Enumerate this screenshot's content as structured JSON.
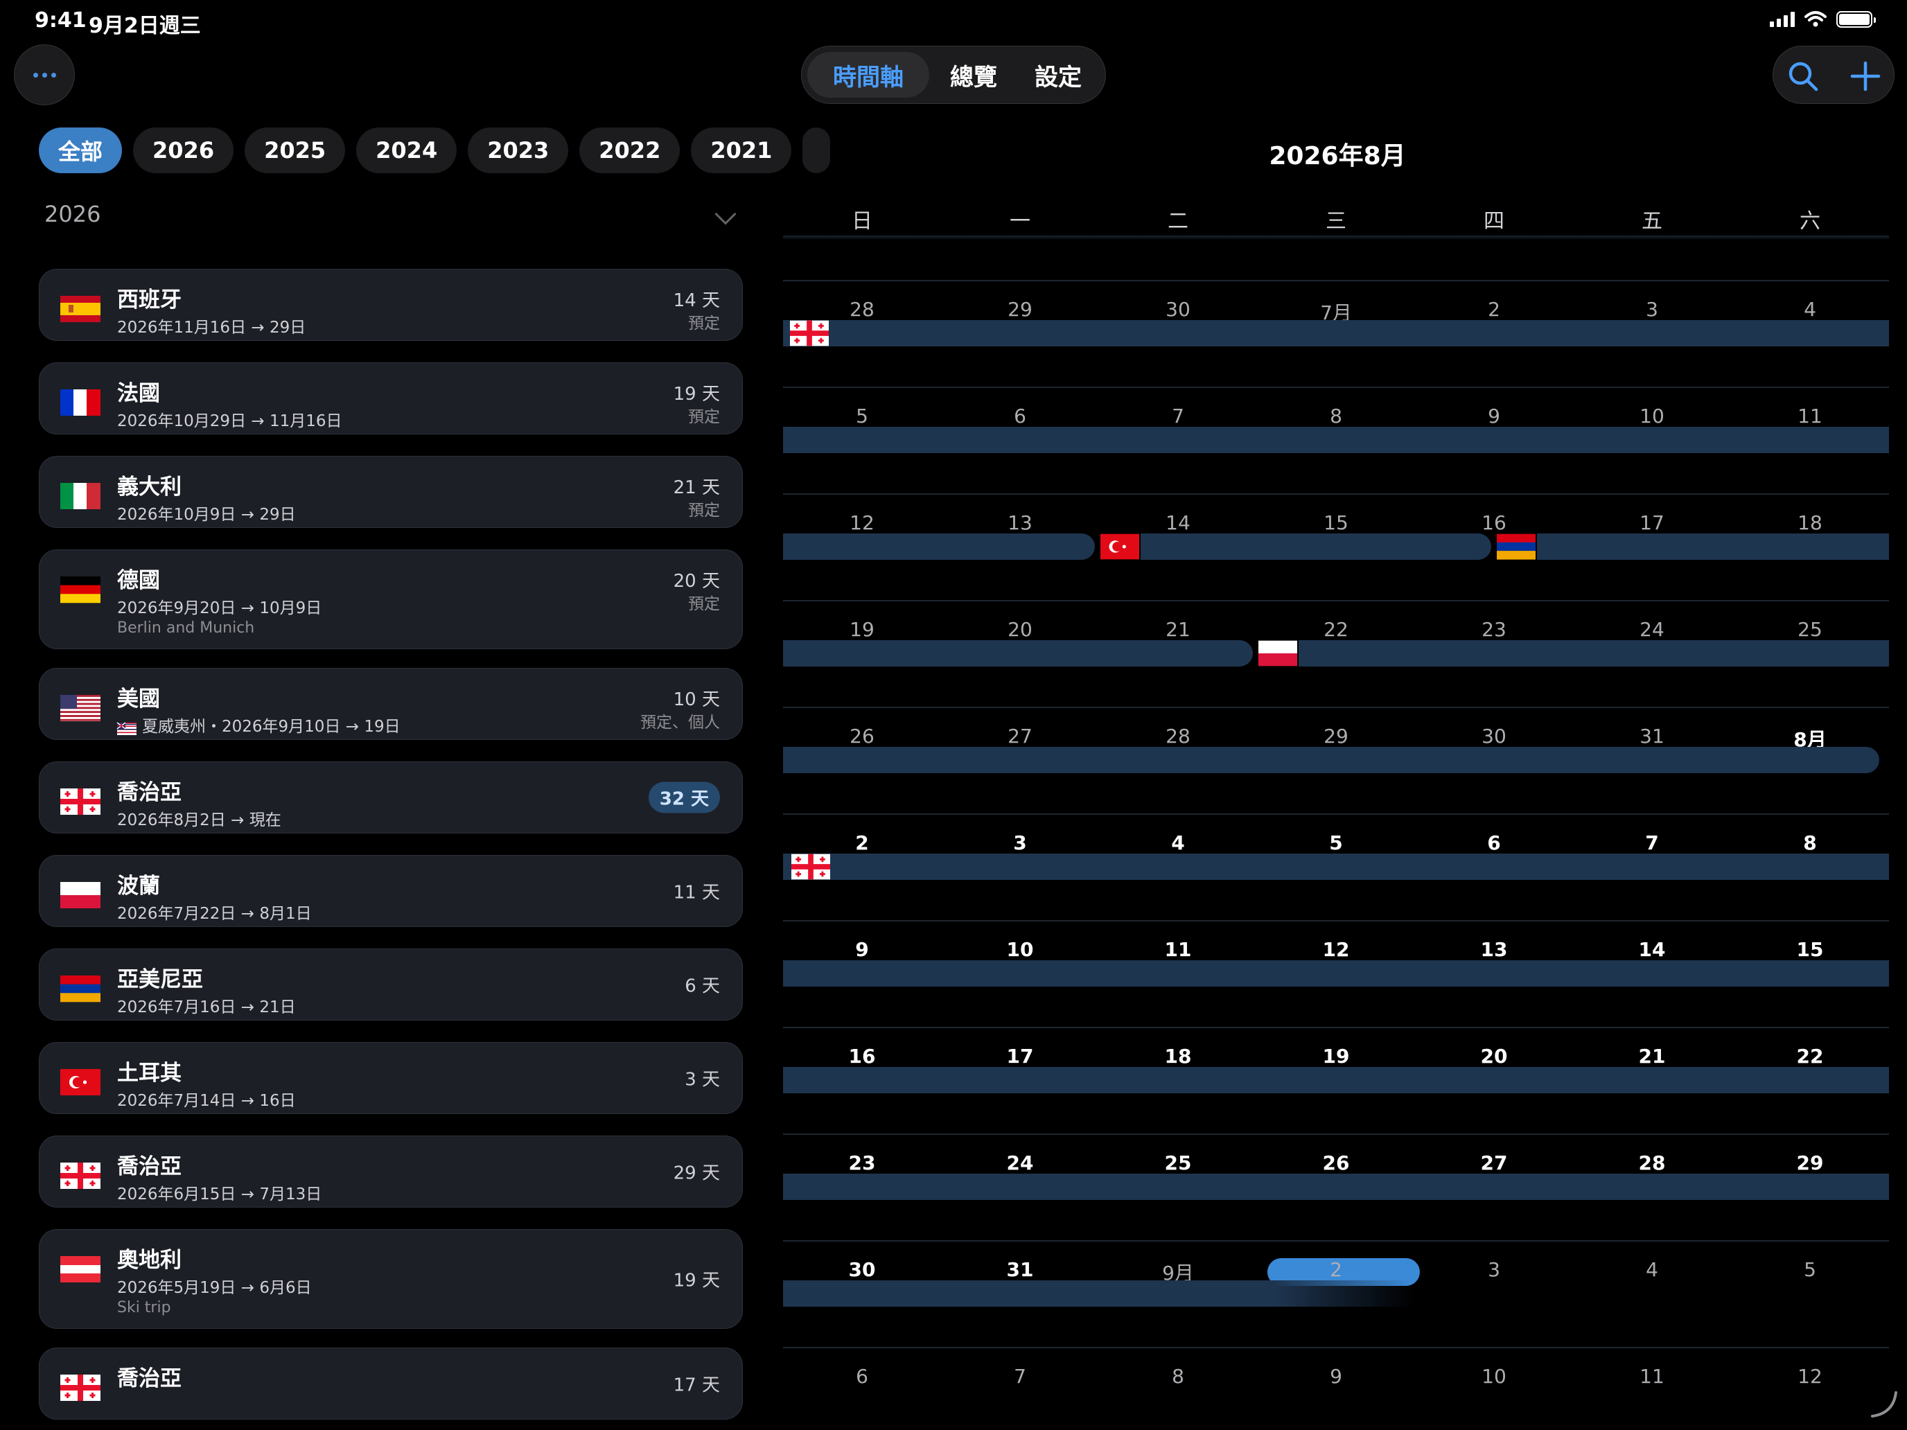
{
  "status_bar": {
    "time": "9:41",
    "date": "9月2日週三"
  },
  "year_chips": [
    {
      "label": "全部",
      "active": true
    },
    {
      "label": "2026"
    },
    {
      "label": "2025"
    },
    {
      "label": "2024"
    },
    {
      "label": "2023"
    },
    {
      "label": "2022"
    },
    {
      "label": "2021"
    }
  ],
  "section": {
    "year": "2026"
  },
  "trips": [
    {
      "name": "西班牙",
      "flag": "spain-flag",
      "dates": "2026年11月16日 → 29日",
      "days": "14 天",
      "status": "預定"
    },
    {
      "name": "法國",
      "flag": "france-flag",
      "dates": "2026年10月29日 → 11月16日",
      "days": "19 天",
      "status": "預定"
    },
    {
      "name": "義大利",
      "flag": "italy-flag",
      "dates": "2026年10月9日 → 29日",
      "days": "21 天",
      "status": "預定"
    },
    {
      "name": "德國",
      "flag": "germany-flag",
      "dates": "2026年9月20日 → 10月9日",
      "days": "20 天",
      "status": "預定",
      "note": "Berlin and Munich"
    },
    {
      "name": "美國",
      "flag": "usa-flag",
      "region": "夏威夷州",
      "dates": "2026年9月10日 → 19日",
      "days": "10 天",
      "status": "預定、個人"
    },
    {
      "name": "喬治亞",
      "flag": "georgia-flag",
      "dates": "2026年8月2日 → 現在",
      "days": "32 天",
      "current": true
    },
    {
      "name": "波蘭",
      "flag": "poland-flag",
      "dates": "2026年7月22日 → 8月1日",
      "days": "11 天"
    },
    {
      "name": "亞美尼亞",
      "flag": "armenia-flag",
      "dates": "2026年7月16日 → 21日",
      "days": "6 天"
    },
    {
      "name": "土耳其",
      "flag": "turkey-flag",
      "dates": "2026年7月14日 → 16日",
      "days": "3 天"
    },
    {
      "name": "喬治亞",
      "flag": "georgia-flag",
      "dates": "2026年6月15日 → 7月13日",
      "days": "29 天"
    },
    {
      "name": "奧地利",
      "flag": "austria-flag",
      "dates": "2026年5月19日 → 6月6日",
      "days": "19 天",
      "note": "Ski trip"
    },
    {
      "name": "喬治亞",
      "flag": "georgia-flag",
      "dates": "",
      "days": "17 天"
    }
  ],
  "view_tabs": [
    {
      "label": "時間軸",
      "active": true
    },
    {
      "label": "總覽"
    },
    {
      "label": "設定"
    }
  ],
  "calendar": {
    "title": "2026年8月",
    "weekdays": [
      "日",
      "一",
      "二",
      "三",
      "四",
      "五",
      "六"
    ],
    "weeks": [
      [
        "28",
        "29",
        "30",
        "7月",
        "2",
        "3",
        "4"
      ],
      [
        "5",
        "6",
        "7",
        "8",
        "9",
        "10",
        "11"
      ],
      [
        "12",
        "13",
        "14",
        "15",
        "16",
        "17",
        "18"
      ],
      [
        "19",
        "20",
        "21",
        "22",
        "23",
        "24",
        "25"
      ],
      [
        "26",
        "27",
        "28",
        "29",
        "30",
        "31",
        "8月"
      ],
      [
        "2",
        "3",
        "4",
        "5",
        "6",
        "7",
        "8"
      ],
      [
        "9",
        "10",
        "11",
        "12",
        "13",
        "14",
        "15"
      ],
      [
        "16",
        "17",
        "18",
        "19",
        "20",
        "21",
        "22"
      ],
      [
        "23",
        "24",
        "25",
        "26",
        "27",
        "28",
        "29"
      ],
      [
        "30",
        "31",
        "9月",
        "2",
        "3",
        "4",
        "5"
      ],
      [
        "6",
        "7",
        "8",
        "9",
        "10",
        "11",
        "12"
      ]
    ],
    "current_month_weeks": [
      5,
      6,
      7,
      8
    ],
    "today": {
      "week": 9,
      "day": 3
    },
    "colors": {
      "bar": "#1e3550",
      "accent": "#3b8ad8"
    }
  }
}
